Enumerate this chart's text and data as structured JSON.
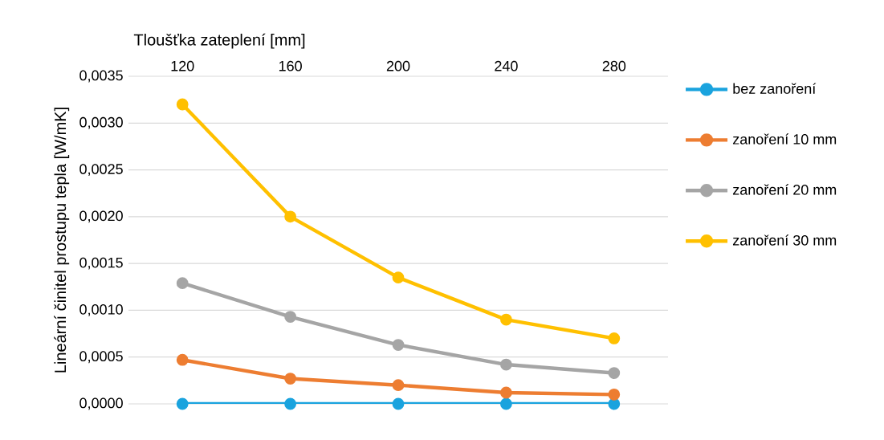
{
  "chart_data": {
    "type": "line",
    "xlabel": "Tloušťka zateplení [mm]",
    "ylabel": "Lineární činitel prostupu tepla [W/mK]",
    "categories": [
      "120",
      "160",
      "200",
      "240",
      "280"
    ],
    "ylim": [
      0,
      0.0035
    ],
    "yticks": [
      {
        "value": 0,
        "label": "0,0000"
      },
      {
        "value": 0.0005,
        "label": "0,0005"
      },
      {
        "value": 0.001,
        "label": "0,0010"
      },
      {
        "value": 0.0015,
        "label": "0,0015"
      },
      {
        "value": 0.002,
        "label": "0,0020"
      },
      {
        "value": 0.0025,
        "label": "0,0025"
      },
      {
        "value": 0.003,
        "label": "0,0030"
      },
      {
        "value": 0.0035,
        "label": "0,0035"
      }
    ],
    "grid": "y",
    "legend": "right",
    "marker": "circle",
    "line_style": "solid",
    "series": [
      {
        "name": "bez zanoření",
        "color": "#1aa3de",
        "values": [
          0,
          0,
          0,
          0,
          0
        ]
      },
      {
        "name": "zanoření 10 mm",
        "color": "#ed7d31",
        "values": [
          0.00047,
          0.00027,
          0.0002,
          0.00012,
          0.0001
        ]
      },
      {
        "name": "zanoření 20 mm",
        "color": "#a5a5a5",
        "values": [
          0.00129,
          0.00093,
          0.00063,
          0.00042,
          0.00033
        ]
      },
      {
        "name": "zanoření 30 mm",
        "color": "#ffc000",
        "values": [
          0.0032,
          0.002,
          0.00135,
          0.0009,
          0.0007
        ]
      }
    ]
  }
}
